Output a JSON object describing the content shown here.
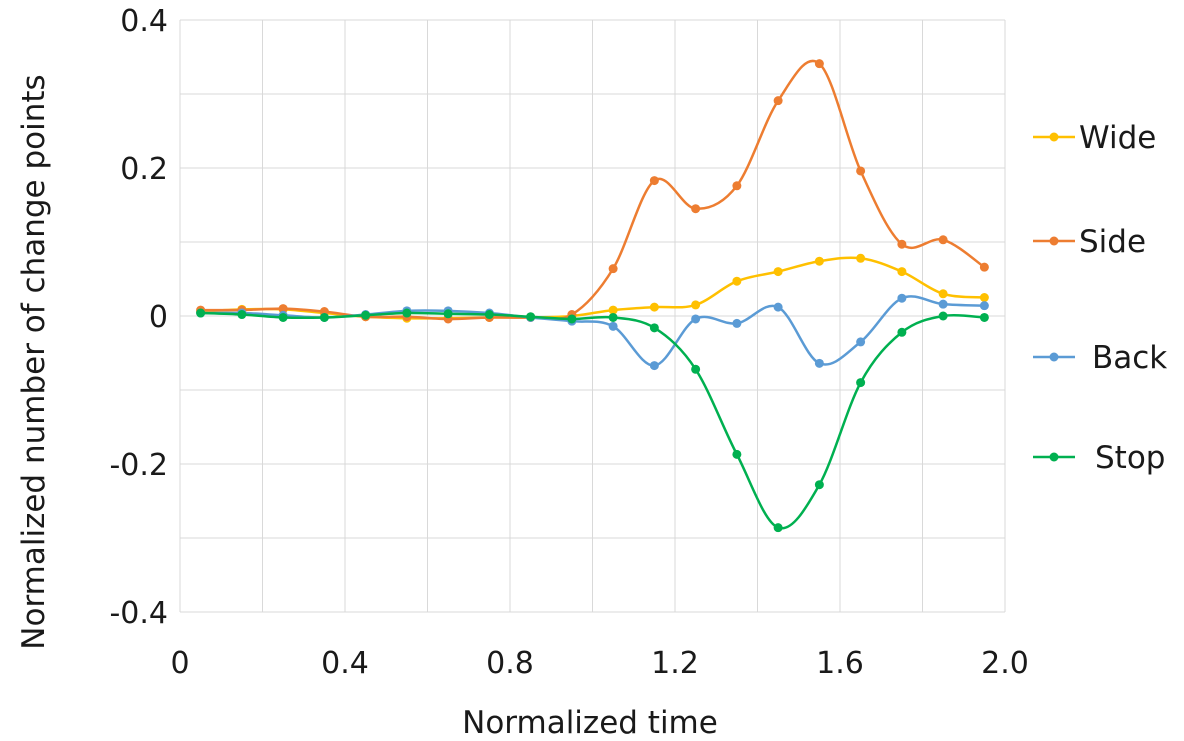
{
  "chart_data": {
    "type": "line",
    "xlabel": "Normalized time",
    "ylabel": "Normalized number of change points",
    "xlim": [
      0,
      2.0
    ],
    "ylim": [
      -0.4,
      0.4
    ],
    "xticks": [
      0,
      0.4,
      0.8,
      1.2,
      1.6,
      2.0
    ],
    "xtick_labels": [
      "0",
      "0.4",
      "0.8",
      "1.2",
      "1.6",
      "2.0"
    ],
    "yticks": [
      -0.4,
      -0.2,
      0,
      0.2,
      0.4
    ],
    "ytick_labels": [
      "-0.4",
      "-0.2",
      "0",
      "0.2",
      "0.4"
    ],
    "grid": true,
    "legend": "right",
    "x": [
      0.05,
      0.15,
      0.25,
      0.35,
      0.45,
      0.55,
      0.65,
      0.75,
      0.85,
      0.95,
      1.05,
      1.15,
      1.25,
      1.35,
      1.45,
      1.55,
      1.65,
      1.75,
      1.85,
      1.95
    ],
    "series": [
      {
        "name": "Wide",
        "color": "#ffc000",
        "values": [
          0.006,
          0.009,
          0.009,
          0.004,
          -0.001,
          -0.003,
          -0.003,
          -0.002,
          -0.002,
          0.0,
          0.008,
          0.012,
          0.015,
          0.047,
          0.06,
          0.074,
          0.078,
          0.06,
          0.03,
          0.025
        ]
      },
      {
        "name": "Side",
        "color": "#ed7d31",
        "values": [
          0.008,
          0.008,
          0.01,
          0.006,
          -0.001,
          -0.001,
          -0.004,
          -0.002,
          -0.002,
          0.002,
          0.064,
          0.183,
          0.145,
          0.176,
          0.291,
          0.341,
          0.196,
          0.097,
          0.103,
          0.066
        ]
      },
      {
        "name": "Back",
        "color": "#5b9bd5",
        "values": [
          0.004,
          0.004,
          0.001,
          -0.002,
          0.002,
          0.007,
          0.007,
          0.004,
          -0.002,
          -0.007,
          -0.014,
          -0.067,
          -0.004,
          -0.01,
          0.012,
          -0.064,
          -0.035,
          0.024,
          0.016,
          0.014
        ]
      },
      {
        "name": "Stop",
        "color": "#00b050",
        "values": [
          0.004,
          0.002,
          -0.002,
          -0.002,
          0.001,
          0.004,
          0.003,
          0.002,
          -0.001,
          -0.004,
          -0.002,
          -0.016,
          -0.072,
          -0.187,
          -0.286,
          -0.228,
          -0.09,
          -0.022,
          0.0,
          -0.002
        ]
      }
    ]
  }
}
